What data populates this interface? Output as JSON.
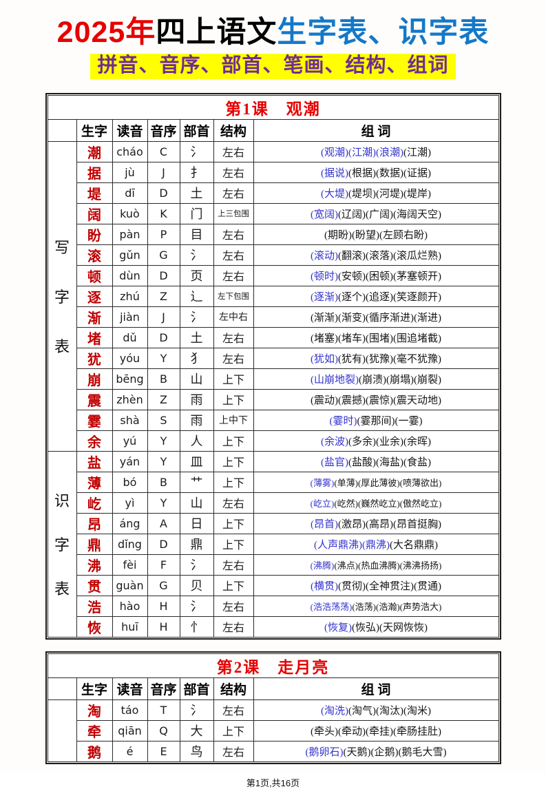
{
  "header": {
    "title_red": "2025年",
    "title_black": "四上语文",
    "title_blue": "生字表、识字表",
    "subtitle": "拼音、音序、部首、笔画、结构、组词"
  },
  "table_columns": [
    "生字",
    "读音",
    "音序",
    "部首",
    "结构",
    "组  词"
  ],
  "lessons": [
    {
      "title": "第1课　观潮",
      "sections": [
        {
          "label": "写字表",
          "rows": [
            {
              "char": "潮",
              "pinyin": "cháo",
              "initial": "C",
              "radical": "氵",
              "structure": "左右",
              "words_blue": "(观潮)(江潮)(浪潮)",
              "words_black": "(江潮)"
            },
            {
              "char": "据",
              "pinyin": "jù",
              "initial": "J",
              "radical": "扌",
              "structure": "左右",
              "words_blue": "(据说)",
              "words_black": "(根据)(数据)(证据)"
            },
            {
              "char": "堤",
              "pinyin": "dī",
              "initial": "D",
              "radical": "土",
              "structure": "左右",
              "words_blue": "(大堤)",
              "words_black": "(堤坝)(河堤)(堤岸)"
            },
            {
              "char": "阔",
              "pinyin": "kuò",
              "initial": "K",
              "radical": "门",
              "structure": "上三包围",
              "words_blue": "(宽阔)",
              "words_black": "(辽阔)(广阔)(海阔天空)"
            },
            {
              "char": "盼",
              "pinyin": "pàn",
              "initial": "P",
              "radical": "目",
              "structure": "左右",
              "words_blue": "",
              "words_black": "(期盼)(盼望)(左顾右盼)"
            },
            {
              "char": "滚",
              "pinyin": "gǔn",
              "initial": "G",
              "radical": "氵",
              "structure": "左右",
              "words_blue": "(滚动)",
              "words_black": "(翻滚)(滚落)(滚瓜烂熟)"
            },
            {
              "char": "顿",
              "pinyin": "dùn",
              "initial": "D",
              "radical": "页",
              "structure": "左右",
              "words_blue": "(顿时)",
              "words_black": "(安顿)(困顿)(茅塞顿开)"
            },
            {
              "char": "逐",
              "pinyin": "zhú",
              "initial": "Z",
              "radical": "辶",
              "structure": "左下包围",
              "words_blue": "(逐渐)",
              "words_black": "(逐个)(追逐)(笑逐颜开)"
            },
            {
              "char": "渐",
              "pinyin": "jiàn",
              "initial": "J",
              "radical": "氵",
              "structure": "左中右",
              "words_blue": "",
              "words_black": "(渐渐)(渐变)(循序渐进)(渐进)"
            },
            {
              "char": "堵",
              "pinyin": "dǔ",
              "initial": "D",
              "radical": "土",
              "structure": "左右",
              "words_blue": "",
              "words_black": "(堵塞)(堵车)(围堵)(围追堵截)"
            },
            {
              "char": "犹",
              "pinyin": "yóu",
              "initial": "Y",
              "radical": "犭",
              "structure": "左右",
              "words_blue": "(犹如)",
              "words_black": "(犹有)(犹豫)(毫不犹豫)"
            },
            {
              "char": "崩",
              "pinyin": "bēng",
              "initial": "B",
              "radical": "山",
              "structure": "上下",
              "words_blue": "(山崩地裂)",
              "words_black": "(崩溃)(崩塌)(崩裂)"
            },
            {
              "char": "震",
              "pinyin": "zhèn",
              "initial": "Z",
              "radical": "雨",
              "structure": "上下",
              "words_blue": "",
              "words_black": "(震动)(震撼)(震惊)(震天动地)"
            },
            {
              "char": "霎",
              "pinyin": "shà",
              "initial": "S",
              "radical": "雨",
              "structure": "上中下",
              "words_blue": "(霎时)",
              "words_black": "(霎那间)(一霎)"
            },
            {
              "char": "余",
              "pinyin": "yú",
              "initial": "Y",
              "radical": "人",
              "structure": "上下",
              "words_blue": "(余波)",
              "words_black": "(多余)(业余)(余晖)"
            }
          ]
        },
        {
          "label": "识字表",
          "rows": [
            {
              "char": "盐",
              "pinyin": "yán",
              "initial": "Y",
              "radical": "皿",
              "structure": "上下",
              "words_blue": "(盐官)",
              "words_black": "(盐酸)(海盐)(食盐)"
            },
            {
              "char": "薄",
              "pinyin": "bó",
              "initial": "B",
              "radical": "艹",
              "structure": "上下",
              "words_blue": "(薄雾)",
              "words_black": "(单薄)(厚此薄彼)(喷薄欲出)"
            },
            {
              "char": "屹",
              "pinyin": "yì",
              "initial": "Y",
              "radical": "山",
              "structure": "左右",
              "words_blue": "(屹立)",
              "words_black": "(屹然)(巍然屹立)(傲然屹立)"
            },
            {
              "char": "昂",
              "pinyin": "áng",
              "initial": "A",
              "radical": "日",
              "structure": "上下",
              "words_blue": "(昂首)",
              "words_black": "(激昂)(高昂)(昂首挺胸)"
            },
            {
              "char": "鼎",
              "pinyin": "dǐng",
              "initial": "D",
              "radical": "鼎",
              "structure": "上下",
              "words_blue": "(人声鼎沸)(鼎沸)",
              "words_black": "(大名鼎鼎)"
            },
            {
              "char": "沸",
              "pinyin": "fèi",
              "initial": "F",
              "radical": "氵",
              "structure": "左右",
              "words_blue": "(沸腾)",
              "words_black": "(沸点)(热血沸腾)(沸沸扬扬)"
            },
            {
              "char": "贯",
              "pinyin": "guàn",
              "initial": "G",
              "radical": "贝",
              "structure": "上下",
              "words_blue": "(横贯)",
              "words_black": "(贯彻)(全神贯注)(贯通)"
            },
            {
              "char": "浩",
              "pinyin": "hào",
              "initial": "H",
              "radical": "氵",
              "structure": "左右",
              "words_blue": "(浩浩荡荡)",
              "words_black": "(浩荡)(浩瀚)(声势浩大)"
            },
            {
              "char": "恢",
              "pinyin": "huī",
              "initial": "H",
              "radical": "忄",
              "structure": "左右",
              "words_blue": "(恢复)",
              "words_black": "(恢弘)(天网恢恢)"
            }
          ]
        }
      ]
    },
    {
      "title": "第2课　走月亮",
      "sections": [
        {
          "label": "",
          "rows": [
            {
              "char": "淘",
              "pinyin": "táo",
              "initial": "T",
              "radical": "氵",
              "structure": "左右",
              "words_blue": "(淘洗)",
              "words_black": "(淘气)(淘汰)(淘米)"
            },
            {
              "char": "牵",
              "pinyin": "qiān",
              "initial": "Q",
              "radical": "大",
              "structure": "上下",
              "words_blue": "",
              "words_black": "(牵头)(牵动)(牵挂)(牵肠挂肚)"
            },
            {
              "char": "鹅",
              "pinyin": "é",
              "initial": "E",
              "radical": "鸟",
              "structure": "左右",
              "words_blue": "(鹅卵石)",
              "words_black": "(天鹅)(企鹅)(鹅毛大雪)"
            }
          ]
        }
      ]
    }
  ],
  "footer": {
    "text": "第1页,共16页"
  },
  "colors": {
    "title_red": "#e60000",
    "title_blue": "#1478c8",
    "subtitle_purple": "#702d91",
    "subtitle_highlight": "#ffff00",
    "lesson_title_red": "#e60000",
    "char_red": "#c00000",
    "word_blue": "#3333cc"
  }
}
